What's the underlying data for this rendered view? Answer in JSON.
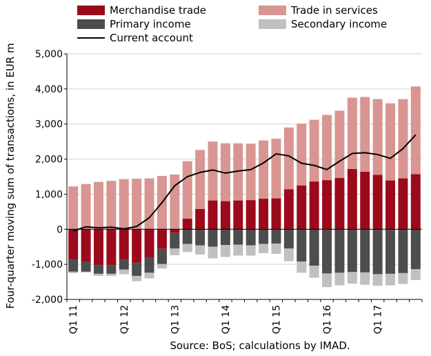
{
  "chart_data": {
    "type": "bar",
    "subtype": "stacked bar with line overlay",
    "ylabel": "Four-quarter moving sum of transactions, in EUR m",
    "xlabel": "",
    "ylim": [
      -2000,
      5000
    ],
    "yticks": [
      -2000,
      -1000,
      0,
      1000,
      2000,
      3000,
      4000,
      5000
    ],
    "ytick_labels": [
      "-2,000",
      "-1,000",
      "0",
      "1,000",
      "2,000",
      "3,000",
      "4,000",
      "5,000"
    ],
    "grid": true,
    "legend_position": "top",
    "source": "Source: BoS; calculations by IMAD.",
    "x_tick_labels": [
      {
        "index": 0,
        "label": "Q1 11"
      },
      {
        "index": 4,
        "label": "Q1 12"
      },
      {
        "index": 8,
        "label": "Q1 13"
      },
      {
        "index": 12,
        "label": "Q1 14"
      },
      {
        "index": 16,
        "label": "Q1 15"
      },
      {
        "index": 20,
        "label": "Q1 16"
      },
      {
        "index": 24,
        "label": "Q1 17"
      }
    ],
    "periods": [
      "Q1 11",
      "Q2 11",
      "Q3 11",
      "Q4 11",
      "Q1 12",
      "Q2 12",
      "Q3 12",
      "Q4 12",
      "Q1 13",
      "Q2 13",
      "Q3 13",
      "Q4 13",
      "Q1 14",
      "Q2 14",
      "Q3 14",
      "Q4 14",
      "Q1 15",
      "Q2 15",
      "Q3 15",
      "Q4 15",
      "Q1 16",
      "Q2 16",
      "Q3 16",
      "Q4 16",
      "Q1 17",
      "Q2 17",
      "Q3 17",
      "Q4 17"
    ],
    "series": [
      {
        "name": "Merchandise trade",
        "kind": "bar",
        "color": "#9b0a1b",
        "values": [
          -850,
          -930,
          -1020,
          -1020,
          -850,
          -950,
          -800,
          -560,
          -100,
          300,
          580,
          820,
          800,
          820,
          830,
          870,
          880,
          1140,
          1250,
          1360,
          1400,
          1460,
          1720,
          1640,
          1550,
          1390,
          1450,
          1570
        ]
      },
      {
        "name": "Trade in services",
        "kind": "bar",
        "color": "#d99592",
        "values": [
          1220,
          1290,
          1350,
          1380,
          1430,
          1440,
          1450,
          1520,
          1560,
          1640,
          1680,
          1680,
          1650,
          1630,
          1610,
          1660,
          1700,
          1760,
          1760,
          1760,
          1860,
          1920,
          2030,
          2130,
          2160,
          2200,
          2260,
          2500
        ]
      },
      {
        "name": "Primary income",
        "kind": "bar",
        "color": "#4d4d4d",
        "values": [
          -360,
          -280,
          -250,
          -250,
          -300,
          -380,
          -440,
          -430,
          -450,
          -420,
          -460,
          -500,
          -450,
          -440,
          -460,
          -420,
          -410,
          -550,
          -920,
          -1040,
          -1260,
          -1240,
          -1220,
          -1230,
          -1280,
          -1270,
          -1250,
          -1140
        ]
      },
      {
        "name": "Secondary income",
        "kind": "bar",
        "color": "#c0c0c0",
        "values": [
          -40,
          -20,
          -60,
          -60,
          -130,
          -150,
          -160,
          -130,
          -190,
          -230,
          -260,
          -330,
          -340,
          -310,
          -290,
          -260,
          -290,
          -360,
          -320,
          -340,
          -390,
          -360,
          -330,
          -350,
          -330,
          -330,
          -310,
          -310
        ]
      },
      {
        "name": "Current account",
        "kind": "line",
        "color": "#000000",
        "values": [
          -50,
          70,
          40,
          60,
          10,
          80,
          330,
          760,
          1240,
          1500,
          1620,
          1690,
          1600,
          1660,
          1700,
          1890,
          2150,
          2090,
          1880,
          1820,
          1700,
          1940,
          2160,
          2180,
          2130,
          2020,
          2300,
          2690
        ]
      }
    ]
  }
}
